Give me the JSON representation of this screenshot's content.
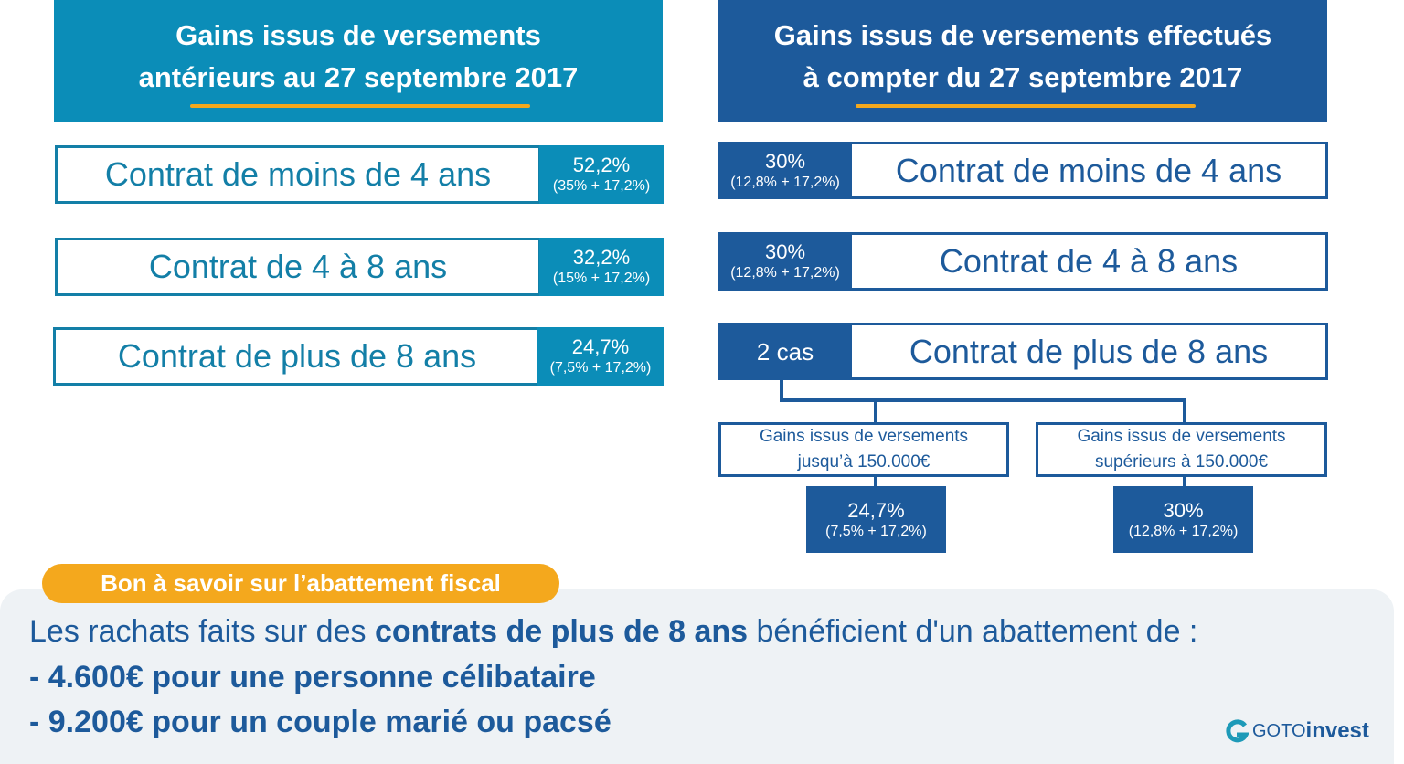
{
  "left": {
    "title": [
      "Gains issus de versements",
      "antérieurs au 27 septembre 2017"
    ],
    "rows": [
      {
        "label": "Contrat de moins de 4 ans",
        "rate": "52,2%",
        "detail": "(35% + 17,2%)"
      },
      {
        "label": "Contrat de 4 à 8 ans",
        "rate": "32,2%",
        "detail": "(15% + 17,2%)"
      },
      {
        "label": "Contrat de plus de 8 ans",
        "rate": "24,7%",
        "detail": "(7,5% + 17,2%)"
      }
    ]
  },
  "right": {
    "title": [
      "Gains issus de versements effectués",
      "à compter du 27 septembre 2017"
    ],
    "rows": [
      {
        "label": "Contrat de moins de 4 ans",
        "rate": "30%",
        "detail": "(12,8% + 17,2%)"
      },
      {
        "label": "Contrat de 4 à 8 ans",
        "rate": "30%",
        "detail": "(12,8% + 17,2%)"
      },
      {
        "label": "Contrat de plus de 8 ans",
        "badge": "2 cas"
      }
    ],
    "branches": [
      {
        "label": [
          "Gains issus de versements",
          "jusqu’à 150.000€"
        ],
        "rate": "24,7%",
        "detail": "(7,5% + 17,2%)"
      },
      {
        "label": [
          "Gains issus de versements",
          "supérieurs à 150.000€"
        ],
        "rate": "30%",
        "detail": "(12,8% + 17,2%)"
      }
    ]
  },
  "note": {
    "tag": "Bon à savoir sur l’abattement fiscal",
    "intro": [
      "Les rachats faits sur des ",
      "contrats de plus de 8 ans",
      " bénéficient d'un abattement de :"
    ],
    "items": [
      "- 4.600€ pour une personne célibataire",
      "- 9.200€ pour un couple marié ou pacsé"
    ]
  },
  "logo": {
    "prefix": "GOTO",
    "suffix": "invest"
  }
}
